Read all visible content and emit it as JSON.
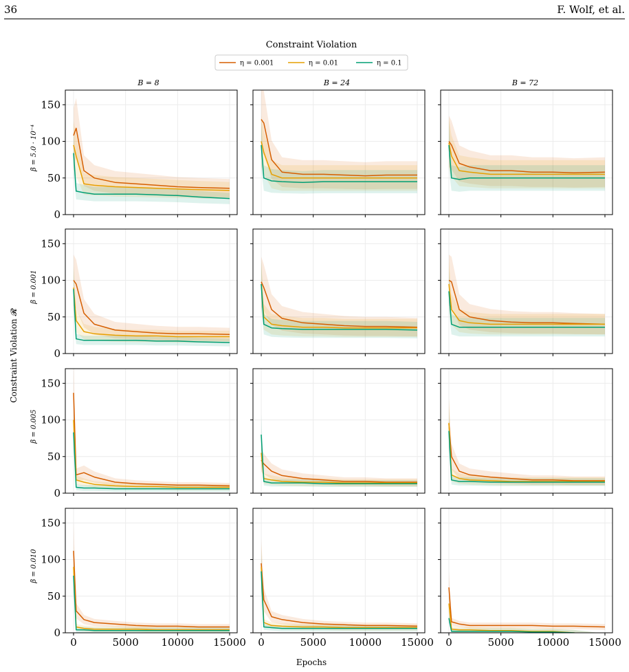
{
  "page": {
    "number": "36",
    "authors": "F. Wolf, et al."
  },
  "figure": {
    "title": "Constraint Violation",
    "xlabel": "Epochs",
    "ylabel": "Constraint Violation 𝓡",
    "legend": [
      {
        "label": "η = 0.001",
        "color": "#d55e00"
      },
      {
        "label": "η = 0.01",
        "color": "#e69f00"
      },
      {
        "label": "η = 0.1",
        "color": "#009e73"
      }
    ],
    "column_titles": [
      "B = 8",
      "B = 24",
      "B = 72"
    ],
    "row_labels": [
      "β = 5.0 · 10⁻⁴",
      "β = 0.001",
      "β = 0.005",
      "β = 0.010"
    ],
    "x_ticks": [
      "0",
      "5000",
      "10000",
      "15000"
    ],
    "y_ticks": [
      "0",
      "50",
      "100",
      "150"
    ]
  },
  "chart_data": {
    "type": "line",
    "grid": true,
    "legend_position": "top-center",
    "xlim": [
      0,
      15000
    ],
    "ylim": [
      0,
      170
    ],
    "x": [
      0,
      250,
      1000,
      2000,
      4000,
      6000,
      8000,
      10000,
      12000,
      15000
    ],
    "panels": [
      {
        "row": "β = 5.0 · 10⁻⁴",
        "col": "B = 8",
        "series": [
          {
            "name": "η = 0.001",
            "values": [
              108,
              118,
              60,
              50,
              44,
              42,
              40,
              38,
              37,
              36
            ]
          },
          {
            "name": "η = 0.01",
            "values": [
              95,
              80,
              42,
              40,
              38,
              37,
              36,
              35,
              34,
              33
            ]
          },
          {
            "name": "η = 0.1",
            "values": [
              84,
              32,
              30,
              28,
              28,
              28,
              27,
              26,
              24,
              22
            ]
          }
        ]
      },
      {
        "row": "β = 5.0 · 10⁻⁴",
        "col": "B = 24",
        "series": [
          {
            "name": "η = 0.001",
            "values": [
              130,
              125,
              75,
              58,
              55,
              55,
              54,
              53,
              54,
              54
            ]
          },
          {
            "name": "η = 0.01",
            "values": [
              100,
              85,
              55,
              50,
              50,
              50,
              50,
              50,
              50,
              50
            ]
          },
          {
            "name": "η = 0.1",
            "values": [
              95,
              50,
              46,
              45,
              44,
              45,
              45,
              45,
              45,
              45
            ]
          }
        ]
      },
      {
        "row": "β = 5.0 · 10⁻⁴",
        "col": "B = 72",
        "series": [
          {
            "name": "η = 0.001",
            "values": [
              100,
              95,
              70,
              65,
              60,
              60,
              58,
              58,
              57,
              58
            ]
          },
          {
            "name": "η = 0.01",
            "values": [
              98,
              80,
              60,
              58,
              55,
              55,
              55,
              55,
              55,
              55
            ]
          },
          {
            "name": "η = 0.1",
            "values": [
              95,
              50,
              48,
              50,
              50,
              50,
              50,
              50,
              50,
              50
            ]
          }
        ]
      },
      {
        "row": "β = 0.001",
        "col": "B = 8",
        "series": [
          {
            "name": "η = 0.001",
            "values": [
              100,
              95,
              55,
              40,
              32,
              30,
              28,
              27,
              27,
              26
            ]
          },
          {
            "name": "η = 0.01",
            "values": [
              90,
              45,
              30,
              27,
              25,
              24,
              24,
              23,
              23,
              23
            ]
          },
          {
            "name": "η = 0.1",
            "values": [
              88,
              20,
              18,
              18,
              18,
              18,
              17,
              17,
              16,
              15
            ]
          }
        ]
      },
      {
        "row": "β = 0.001",
        "col": "B = 24",
        "series": [
          {
            "name": "η = 0.001",
            "values": [
              98,
              90,
              60,
              48,
              42,
              40,
              38,
              37,
              37,
              36
            ]
          },
          {
            "name": "η = 0.01",
            "values": [
              95,
              50,
              40,
              38,
              36,
              36,
              35,
              35,
              35,
              35
            ]
          },
          {
            "name": "η = 0.1",
            "values": [
              95,
              40,
              35,
              34,
              33,
              33,
              33,
              33,
              33,
              32
            ]
          }
        ]
      },
      {
        "row": "β = 0.001",
        "col": "B = 72",
        "series": [
          {
            "name": "η = 0.001",
            "values": [
              100,
              98,
              60,
              50,
              45,
              43,
              42,
              42,
              41,
              40
            ]
          },
          {
            "name": "η = 0.01",
            "values": [
              95,
              60,
              45,
              42,
              40,
              40,
              40,
              40,
              40,
              40
            ]
          },
          {
            "name": "η = 0.1",
            "values": [
              85,
              40,
              36,
              36,
              36,
              36,
              36,
              36,
              36,
              36
            ]
          }
        ]
      },
      {
        "row": "β = 0.005",
        "col": "B = 8",
        "series": [
          {
            "name": "η = 0.001",
            "values": [
              137,
              25,
              28,
              22,
              15,
              13,
              12,
              11,
              11,
              10
            ]
          },
          {
            "name": "η = 0.01",
            "values": [
              100,
              18,
              15,
              12,
              10,
              9,
              9,
              8,
              8,
              8
            ]
          },
          {
            "name": "η = 0.1",
            "values": [
              83,
              8,
              7,
              7,
              6,
              6,
              6,
              6,
              6,
              6
            ]
          }
        ]
      },
      {
        "row": "β = 0.005",
        "col": "B = 24",
        "series": [
          {
            "name": "η = 0.001",
            "values": [
              45,
              40,
              30,
              24,
              20,
              18,
              16,
              16,
              15,
              15
            ]
          },
          {
            "name": "η = 0.01",
            "values": [
              55,
              20,
              18,
              16,
              15,
              15,
              14,
              14,
              14,
              14
            ]
          },
          {
            "name": "η = 0.1",
            "values": [
              80,
              16,
              14,
              14,
              14,
              13,
              13,
              13,
              13,
              13
            ]
          }
        ]
      },
      {
        "row": "β = 0.005",
        "col": "B = 72",
        "series": [
          {
            "name": "η = 0.001",
            "values": [
              95,
              50,
              30,
              25,
              22,
              20,
              18,
              18,
              17,
              17
            ]
          },
          {
            "name": "η = 0.01",
            "values": [
              96,
              25,
              20,
              18,
              17,
              16,
              16,
              16,
              16,
              16
            ]
          },
          {
            "name": "η = 0.1",
            "values": [
              85,
              18,
              16,
              16,
              15,
              15,
              15,
              15,
              15,
              15
            ]
          }
        ]
      },
      {
        "row": "β = 0.010",
        "col": "B = 8",
        "series": [
          {
            "name": "η = 0.001",
            "values": [
              112,
              30,
              18,
              14,
              12,
              10,
              9,
              9,
              8,
              8
            ]
          },
          {
            "name": "η = 0.01",
            "values": [
              90,
              8,
              6,
              5,
              5,
              5,
              4,
              4,
              4,
              4
            ]
          },
          {
            "name": "η = 0.1",
            "values": [
              78,
              4,
              4,
              3,
              3,
              3,
              3,
              3,
              3,
              3
            ]
          }
        ]
      },
      {
        "row": "β = 0.010",
        "col": "B = 24",
        "series": [
          {
            "name": "η = 0.001",
            "values": [
              95,
              45,
              22,
              18,
              14,
              12,
              11,
              10,
              10,
              9
            ]
          },
          {
            "name": "η = 0.01",
            "values": [
              90,
              14,
              10,
              9,
              8,
              8,
              7,
              7,
              7,
              7
            ]
          },
          {
            "name": "η = 0.1",
            "values": [
              84,
              8,
              7,
              6,
              6,
              6,
              6,
              6,
              6,
              6
            ]
          }
        ]
      },
      {
        "row": "β = 0.010",
        "col": "B = 72",
        "series": [
          {
            "name": "η = 0.001",
            "values": [
              62,
              15,
              12,
              10,
              10,
              10,
              10,
              9,
              9,
              8
            ]
          },
          {
            "name": "η = 0.01",
            "values": [
              40,
              5,
              4,
              4,
              3,
              3,
              2,
              2,
              0,
              -5
            ]
          },
          {
            "name": "η = 0.1",
            "values": [
              20,
              2,
              2,
              2,
              2,
              2,
              1,
              1,
              0,
              -5
            ]
          }
        ]
      }
    ]
  }
}
